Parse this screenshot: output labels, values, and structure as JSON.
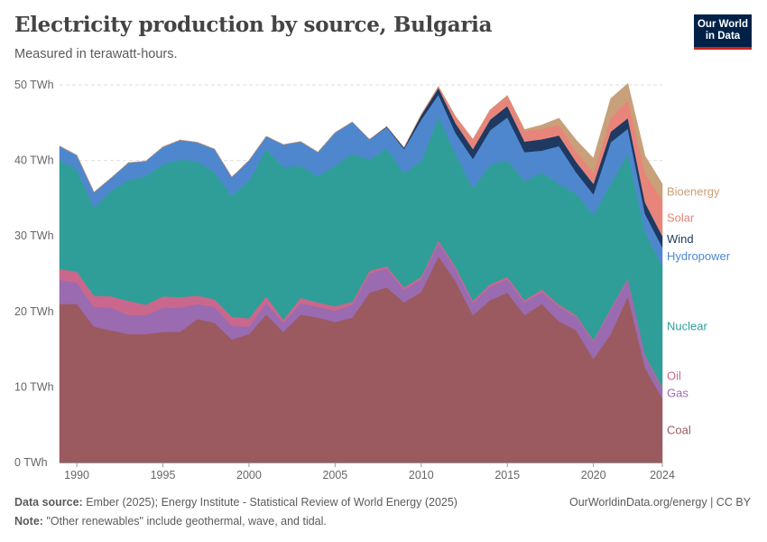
{
  "header": {
    "title": "Electricity production by source, Bulgaria",
    "subtitle": "Measured in terawatt-hours.",
    "logo_line1": "Our World",
    "logo_line2": "in Data"
  },
  "footer": {
    "source_label": "Data source:",
    "source_text": "Ember (2025); Energy Institute - Statistical Review of World Energy (2025)",
    "note_label": "Note:",
    "note_text": "\"Other renewables\" include geothermal, wave, and tidal.",
    "right_text": "OurWorldinData.org/energy | CC BY"
  },
  "chart_data": {
    "type": "area",
    "stacked": true,
    "title": "Electricity production by source, Bulgaria",
    "ylabel": "TWh",
    "ylim": [
      0,
      50
    ],
    "yticks": [
      0,
      10,
      20,
      30,
      40,
      50
    ],
    "ytick_labels": [
      "0 TWh",
      "10 TWh",
      "20 TWh",
      "30 TWh",
      "40 TWh",
      "50 TWh"
    ],
    "xlim": [
      1989,
      2024
    ],
    "xticks": [
      1990,
      1995,
      2000,
      2005,
      2010,
      2015,
      2020,
      2024
    ],
    "x": [
      1989,
      1990,
      1991,
      1992,
      1993,
      1994,
      1995,
      1996,
      1997,
      1998,
      1999,
      2000,
      2001,
      2002,
      2003,
      2004,
      2005,
      2006,
      2007,
      2008,
      2009,
      2010,
      2011,
      2012,
      2013,
      2014,
      2015,
      2016,
      2017,
      2018,
      2019,
      2020,
      2021,
      2022,
      2023,
      2024
    ],
    "series": [
      {
        "name": "Coal",
        "color": "#9a5a60",
        "values": [
          21.0,
          21.0,
          18.0,
          17.5,
          17.0,
          17.0,
          17.3,
          17.3,
          19.0,
          18.5,
          16.3,
          17.0,
          19.6,
          17.3,
          19.6,
          19.2,
          18.6,
          19.2,
          22.5,
          23.2,
          21.2,
          22.6,
          27.3,
          24.0,
          19.5,
          21.5,
          22.5,
          19.5,
          21.0,
          18.7,
          17.5,
          13.7,
          17.0,
          22.0,
          12.5,
          8.5
        ]
      },
      {
        "name": "Gas",
        "color": "#9a6bb0",
        "values": [
          3.2,
          2.8,
          2.6,
          3.0,
          2.5,
          2.5,
          3.2,
          3.2,
          2.0,
          2.1,
          1.8,
          1.0,
          1.5,
          1.2,
          1.5,
          1.4,
          1.5,
          1.7,
          2.5,
          2.5,
          1.7,
          1.7,
          1.8,
          1.6,
          1.6,
          1.8,
          1.8,
          1.7,
          1.6,
          1.9,
          1.8,
          2.3,
          3.2,
          2.2,
          1.5,
          1.3
        ]
      },
      {
        "name": "Oil",
        "color": "#c9688c",
        "values": [
          1.4,
          1.5,
          1.5,
          1.5,
          1.9,
          1.4,
          1.5,
          1.4,
          1.1,
          1.0,
          1.2,
          1.1,
          0.9,
          0.4,
          0.7,
          0.6,
          0.6,
          0.4,
          0.4,
          0.3,
          0.3,
          0.3,
          0.3,
          0.3,
          0.3,
          0.3,
          0.3,
          0.3,
          0.3,
          0.3,
          0.2,
          0.2,
          0.2,
          0.2,
          0.2,
          0.2
        ]
      },
      {
        "name": "Nuclear",
        "color": "#2f9e98",
        "values": [
          14.5,
          13.5,
          11.6,
          14.0,
          16.0,
          17.0,
          17.5,
          18.2,
          17.8,
          16.8,
          16.0,
          18.2,
          19.5,
          20.2,
          17.5,
          16.7,
          18.6,
          19.6,
          14.7,
          15.6,
          15.1,
          15.3,
          16.3,
          15.0,
          14.9,
          15.8,
          15.4,
          15.8,
          15.5,
          16.0,
          16.1,
          16.6,
          16.5,
          16.5,
          16.3,
          16.0
        ]
      },
      {
        "name": "Hydropower",
        "color": "#4f87cf",
        "values": [
          1.8,
          1.9,
          2.1,
          1.7,
          2.3,
          2.0,
          2.3,
          2.6,
          2.5,
          3.1,
          2.5,
          2.7,
          1.7,
          3.0,
          3.2,
          3.2,
          4.4,
          4.2,
          2.7,
          2.8,
          3.2,
          5.5,
          3.0,
          2.7,
          3.9,
          4.6,
          5.7,
          3.8,
          2.9,
          5.0,
          2.8,
          2.7,
          5.5,
          3.3,
          2.4,
          2.5
        ]
      },
      {
        "name": "Wind",
        "color": "#1e3a62",
        "values": [
          0,
          0,
          0,
          0,
          0,
          0,
          0,
          0,
          0,
          0,
          0,
          0,
          0,
          0,
          0,
          0,
          0,
          0,
          0,
          0.1,
          0.2,
          0.6,
          0.9,
          1.3,
          1.3,
          1.4,
          1.5,
          1.4,
          1.5,
          1.4,
          1.4,
          1.4,
          1.4,
          1.4,
          1.5,
          1.5
        ]
      },
      {
        "name": "Solar",
        "color": "#e8857a",
        "values": [
          0,
          0,
          0,
          0,
          0,
          0,
          0,
          0,
          0,
          0,
          0,
          0,
          0,
          0,
          0,
          0,
          0,
          0,
          0,
          0,
          0,
          0.1,
          0.2,
          0.9,
          1.3,
          1.3,
          1.4,
          1.4,
          1.4,
          1.4,
          1.4,
          1.5,
          1.8,
          2.4,
          3.9,
          4.7
        ]
      },
      {
        "name": "Bioenergy",
        "color": "#c8a079",
        "values": [
          0,
          0,
          0,
          0,
          0,
          0,
          0,
          0,
          0,
          0,
          0,
          0,
          0,
          0,
          0,
          0,
          0,
          0,
          0,
          0,
          0,
          0,
          0,
          0,
          0,
          0,
          0,
          0.2,
          0.5,
          0.9,
          1.5,
          1.9,
          2.6,
          2.2,
          2.3,
          2.2
        ]
      }
    ]
  }
}
